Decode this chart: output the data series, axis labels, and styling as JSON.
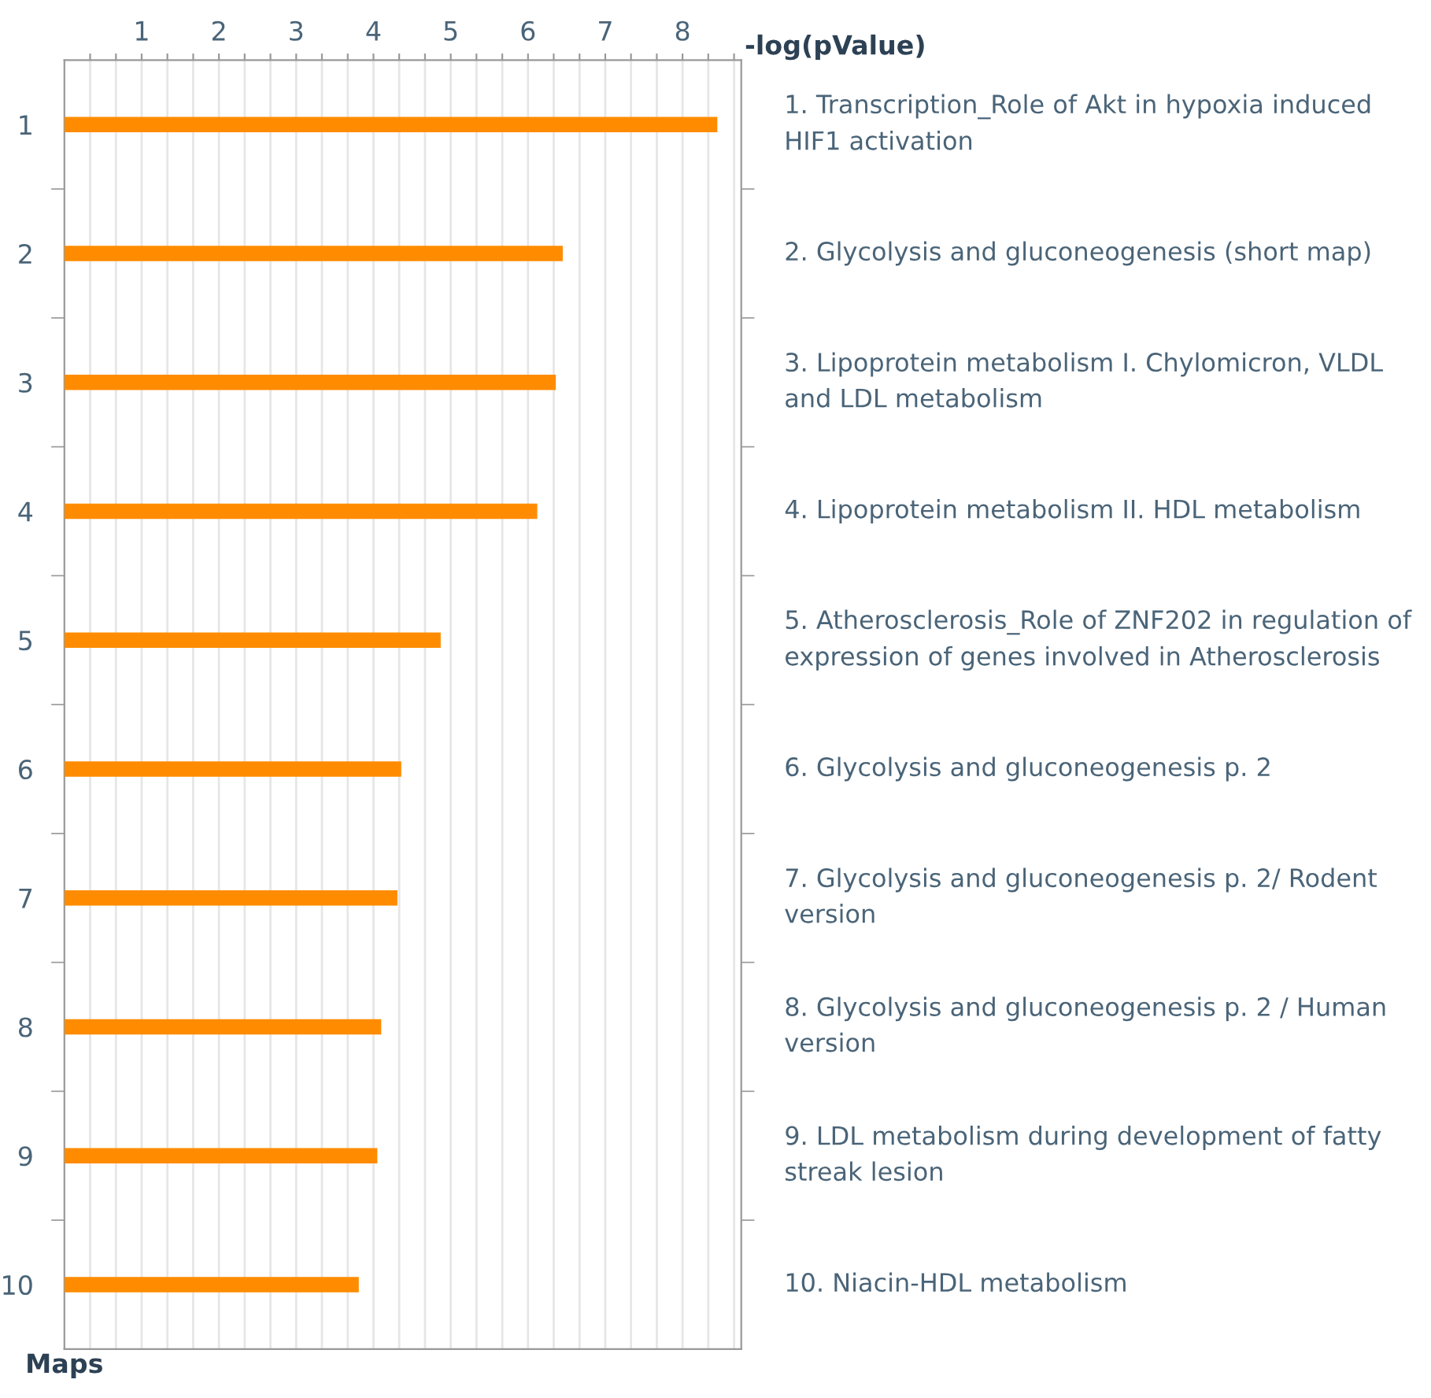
{
  "chart_data": {
    "type": "bar",
    "orientation": "horizontal",
    "xlabel": "-log(pValue)",
    "ylabel": "Maps",
    "categories": [
      "1",
      "2",
      "3",
      "4",
      "5",
      "6",
      "7",
      "8",
      "9",
      "10"
    ],
    "values": [
      8.45,
      6.45,
      6.36,
      6.12,
      4.87,
      4.36,
      4.31,
      4.1,
      4.05,
      3.81
    ],
    "color": "#ff8c00",
    "xlim": [
      0,
      8.76
    ],
    "xticks": [
      {
        "value": 0.333,
        "label": null
      },
      {
        "value": 0.667,
        "label": null
      },
      1,
      {
        "value": 1.333,
        "label": null
      },
      {
        "value": 1.667,
        "label": null
      },
      2,
      {
        "value": 2.333,
        "label": null
      },
      {
        "value": 2.667,
        "label": null
      },
      3,
      {
        "value": 3.333,
        "label": null
      },
      {
        "value": 3.667,
        "label": null
      },
      4,
      {
        "value": 4.333,
        "label": null
      },
      {
        "value": 4.667,
        "label": null
      },
      5,
      {
        "value": 5.333,
        "label": null
      },
      {
        "value": 5.667,
        "label": null
      },
      6,
      {
        "value": 6.333,
        "label": null
      },
      {
        "value": 6.667,
        "label": null
      },
      7,
      {
        "value": 7.333,
        "label": null
      },
      {
        "value": 7.667,
        "label": null
      },
      8,
      {
        "value": 8.333,
        "label": null
      },
      {
        "value": 8.667,
        "label": null
      }
    ],
    "grid": "x",
    "annotations": [
      "1. Transcription_Role of Akt in hypoxia induced HIF1 activation",
      "2. Glycolysis and gluconeogenesis (short map)",
      "3. Lipoprotein metabolism I. Chylomicron, VLDL and LDL metabolism",
      "4. Lipoprotein metabolism II. HDL metabolism",
      "5. Atherosclerosis_Role of ZNF202 in regulation of expression of genes involved in Atherosclerosis",
      "6. Glycolysis and gluconeogenesis p. 2",
      "7. Glycolysis and gluconeogenesis p. 2/ Rodent version",
      "8. Glycolysis and gluconeogenesis p. 2 / Human version",
      "9. LDL metabolism during development of fatty streak lesion",
      "10. Niacin-HDL metabolism"
    ]
  }
}
